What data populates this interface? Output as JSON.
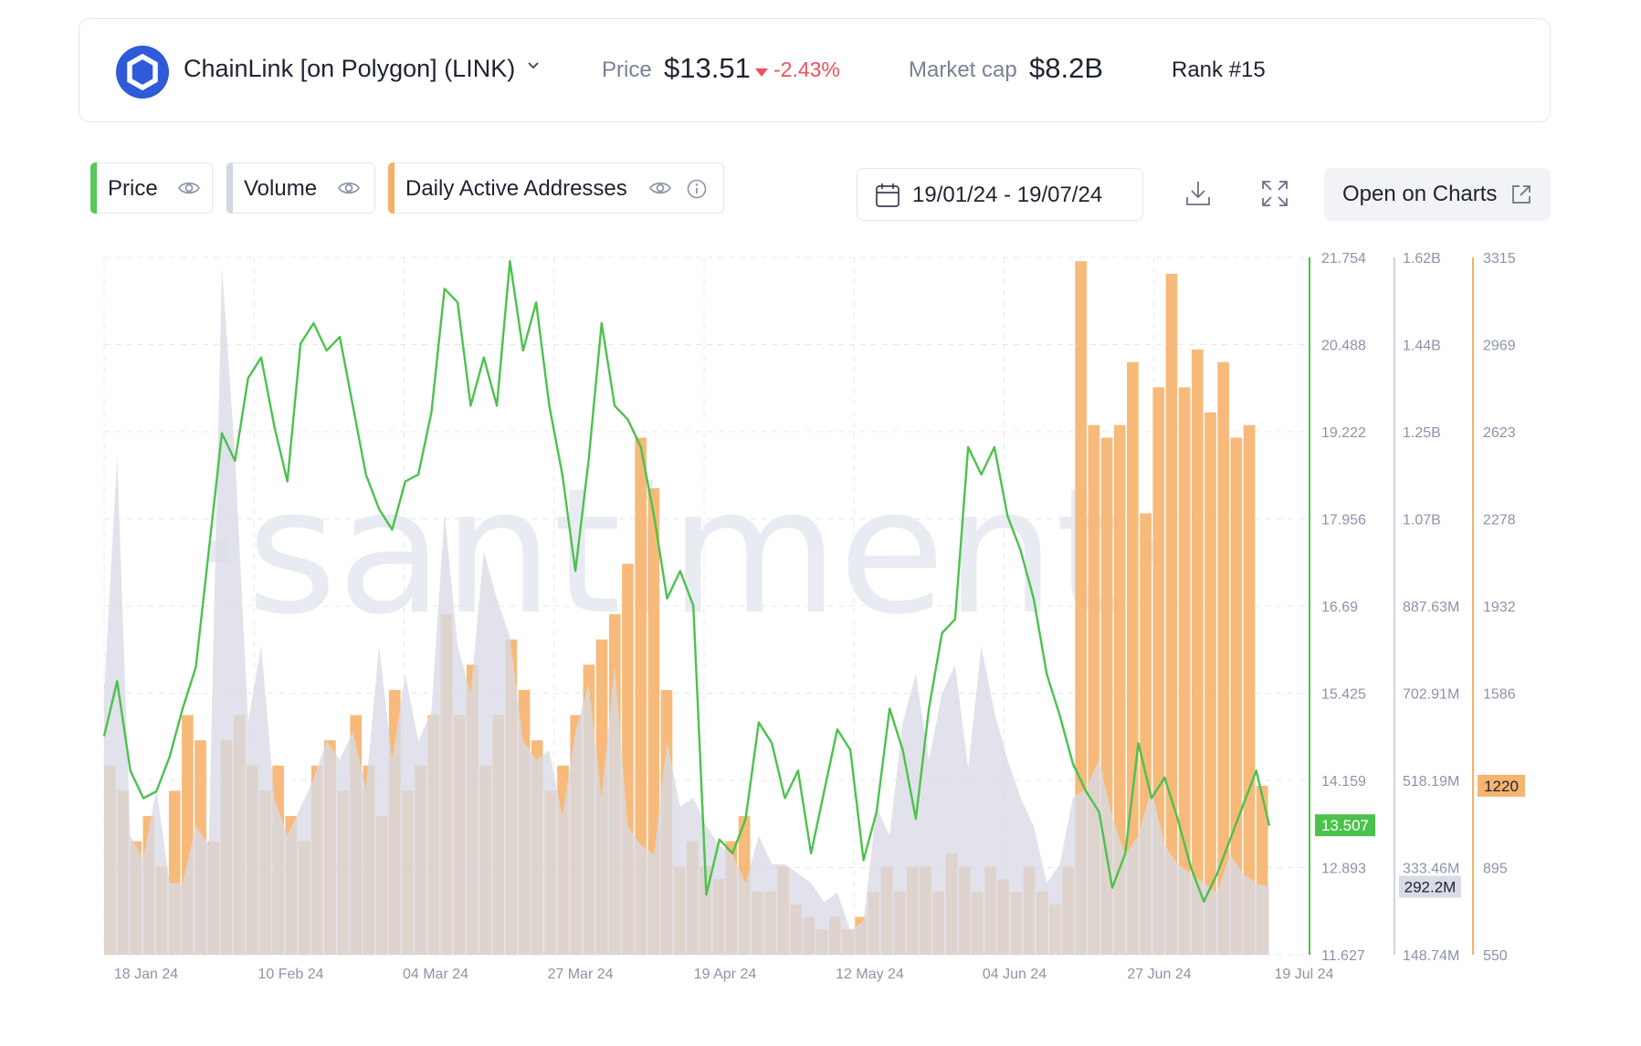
{
  "header": {
    "coin_name": "ChainLink [on Polygon] (LINK)",
    "price_label": "Price",
    "price_value": "$13.51",
    "price_change": "-2.43%",
    "market_cap_label": "Market cap",
    "market_cap_value": "$8.2B",
    "rank": "Rank #15"
  },
  "toolbar": {
    "metrics": [
      {
        "label": "Price",
        "color": "#5ac85a"
      },
      {
        "label": "Volume",
        "color": "#d3d6e4"
      },
      {
        "label": "Daily Active Addresses",
        "color": "#f5b06a"
      }
    ],
    "date_range": "19/01/24 - 19/07/24",
    "open_charts_label": "Open on Charts"
  },
  "colors": {
    "price": "#4cc24c",
    "volume": "#d8dae6",
    "daa": "#f6b46f",
    "negative": "#f0505b",
    "brand": "#2f5bd8"
  },
  "watermark": "·santiment·",
  "chart_data": {
    "type": "line",
    "x_labels": [
      "18 Jan 24",
      "10 Feb 24",
      "04 Mar 24",
      "27 Mar 24",
      "19 Apr 24",
      "12 May 24",
      "04 Jun 24",
      "27 Jun 24",
      "19 Jul 24"
    ],
    "x_range": [
      "2024-01-19",
      "2024-07-19"
    ],
    "axes": {
      "price": {
        "ticks": [
          "21.754",
          "20.488",
          "19.222",
          "17.956",
          "16.69",
          "15.425",
          "14.159",
          "12.893",
          "11.627"
        ],
        "range": [
          11.627,
          21.754
        ],
        "current": "13.507"
      },
      "volume": {
        "ticks": [
          "1.62B",
          "1.44B",
          "1.25B",
          "1.07B",
          "887.63M",
          "702.91M",
          "518.19M",
          "333.46M",
          "148.74M"
        ],
        "range": [
          148740000,
          1620000000
        ],
        "current": "292.2M"
      },
      "daa": {
        "ticks": [
          "3315",
          "2969",
          "2623",
          "2278",
          "1932",
          "1586",
          "1220",
          "895",
          "550"
        ],
        "range": [
          550,
          3315
        ],
        "current": "1220"
      }
    },
    "series": [
      {
        "name": "Price",
        "kind": "line",
        "values": [
          14.8,
          15.6,
          14.3,
          13.9,
          14.0,
          14.5,
          15.2,
          15.8,
          17.5,
          19.2,
          18.8,
          20.0,
          20.3,
          19.3,
          18.5,
          20.5,
          20.8,
          20.4,
          20.6,
          19.6,
          18.6,
          18.1,
          17.8,
          18.5,
          18.6,
          19.5,
          21.3,
          21.1,
          19.6,
          20.3,
          19.6,
          21.7,
          20.4,
          21.1,
          19.6,
          18.6,
          17.2,
          18.8,
          20.8,
          19.6,
          19.4,
          19.0,
          18.0,
          16.8,
          17.2,
          16.7,
          12.5,
          13.3,
          13.1,
          13.6,
          15.0,
          14.7,
          13.9,
          14.3,
          13.1,
          14.0,
          14.9,
          14.6,
          13.0,
          13.7,
          15.2,
          14.6,
          13.6,
          15.2,
          16.3,
          16.5,
          19.0,
          18.6,
          19.0,
          18.0,
          17.5,
          16.8,
          15.7,
          15.1,
          14.4,
          14.0,
          13.7,
          12.6,
          13.1,
          14.7,
          13.9,
          14.2,
          13.6,
          12.9,
          12.4,
          12.8,
          13.3,
          13.8,
          14.3,
          13.5
        ],
        "unit": "USD"
      },
      {
        "name": "Volume",
        "kind": "area",
        "values": [
          700,
          1200,
          400,
          350,
          500,
          300,
          300,
          420,
          380,
          1600,
          1200,
          640,
          800,
          480,
          400,
          460,
          520,
          600,
          560,
          620,
          500,
          800,
          560,
          740,
          600,
          660,
          1080,
          800,
          700,
          1000,
          900,
          820,
          600,
          560,
          580,
          440,
          620,
          720,
          480,
          760,
          420,
          380,
          360,
          600,
          460,
          480,
          420,
          380,
          360,
          300,
          400,
          340,
          340,
          320,
          300,
          260,
          280,
          200,
          220,
          460,
          400,
          640,
          740,
          560,
          700,
          760,
          540,
          800,
          660,
          560,
          480,
          420,
          300,
          340,
          480,
          500,
          560,
          440,
          360,
          400,
          500,
          380,
          340,
          320,
          300,
          280,
          360,
          320,
          300,
          292
        ],
        "unit": "USD millions"
      },
      {
        "name": "Daily Active Addresses",
        "kind": "bar",
        "values": [
          1300,
          1200,
          1000,
          1100,
          900,
          1200,
          1500,
          1400,
          1000,
          1400,
          1500,
          1300,
          1200,
          1300,
          1100,
          1000,
          1300,
          1400,
          1200,
          1500,
          1300,
          1100,
          1600,
          1200,
          1300,
          1500,
          1900,
          1500,
          1700,
          1300,
          1500,
          1800,
          1600,
          1400,
          1200,
          1300,
          1500,
          1700,
          1800,
          1900,
          2100,
          2600,
          2400,
          1600,
          900,
          1000,
          900,
          850,
          1000,
          1100,
          800,
          800,
          900,
          750,
          700,
          650,
          700,
          650,
          700,
          800,
          900,
          800,
          900,
          900,
          800,
          950,
          900,
          800,
          900,
          850,
          800,
          900,
          800,
          750,
          900,
          3300,
          2650,
          2600,
          2650,
          2900,
          2300,
          2800,
          3250,
          2800,
          2950,
          2700,
          2900,
          2600,
          2650,
          1220
        ],
        "unit": "addresses"
      }
    ]
  }
}
